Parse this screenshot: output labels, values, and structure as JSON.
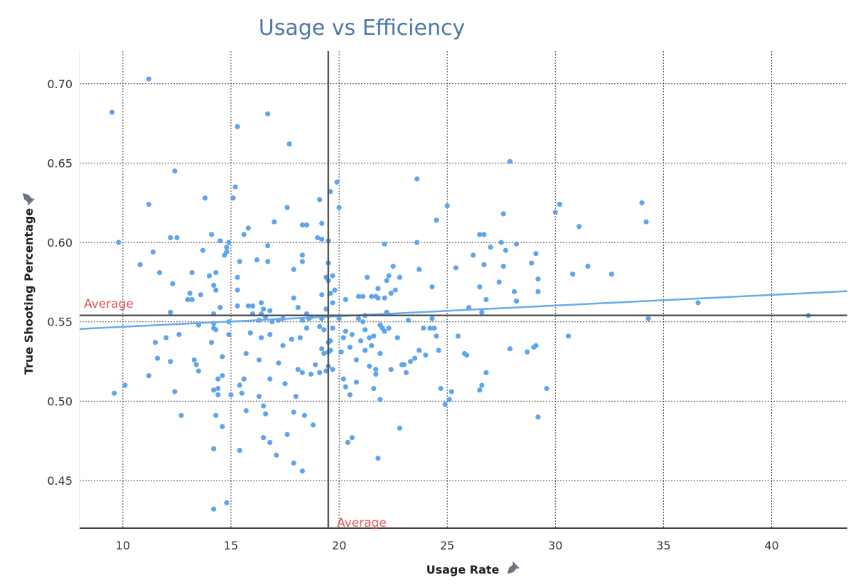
{
  "colors": {
    "title": "#4e79a7",
    "point": "#5ea5ec",
    "trend": "#66aaf0",
    "average_line": "#555555",
    "average_label": "#e15759",
    "grid": "#4a4a4a"
  },
  "chart_data": {
    "type": "scatter",
    "title": "Usage vs Efficiency",
    "xlabel": "Usage Rate",
    "ylabel": "True Shooting Percentage",
    "axis_pin_icon": "pin-icon",
    "xlim": [
      8,
      43.5
    ],
    "ylim": [
      0.42,
      0.7205
    ],
    "x_ticks": [
      10,
      15,
      20,
      25,
      30,
      35,
      40
    ],
    "y_ticks": [
      0.45,
      0.5,
      0.55,
      0.6,
      0.65,
      0.7
    ],
    "y_tick_labels": [
      "0.45",
      "0.50",
      "0.55",
      "0.60",
      "0.65",
      "0.70"
    ],
    "grid": true,
    "averages": {
      "x": 19.5,
      "y": 0.554,
      "x_label": "Average",
      "y_label": "Average"
    },
    "trend_line": {
      "x": [
        8,
        43.5
      ],
      "y": [
        0.5455,
        0.5693
      ]
    },
    "points": [
      [
        9.5,
        0.682
      ],
      [
        9.6,
        0.505
      ],
      [
        9.8,
        0.6
      ],
      [
        10.1,
        0.51
      ],
      [
        10.8,
        0.586
      ],
      [
        11.2,
        0.703
      ],
      [
        11.2,
        0.624
      ],
      [
        11.2,
        0.516
      ],
      [
        11.4,
        0.594
      ],
      [
        11.5,
        0.537
      ],
      [
        11.6,
        0.527
      ],
      [
        11.7,
        0.581
      ],
      [
        12.0,
        0.54
      ],
      [
        12.2,
        0.603
      ],
      [
        12.2,
        0.556
      ],
      [
        12.2,
        0.525
      ],
      [
        12.3,
        0.574
      ],
      [
        12.4,
        0.645
      ],
      [
        12.4,
        0.506
      ],
      [
        12.5,
        0.603
      ],
      [
        12.6,
        0.542
      ],
      [
        12.7,
        0.491
      ],
      [
        13.0,
        0.564
      ],
      [
        13.1,
        0.568
      ],
      [
        13.2,
        0.564
      ],
      [
        13.2,
        0.581
      ],
      [
        13.3,
        0.526
      ],
      [
        13.4,
        0.523
      ],
      [
        13.5,
        0.548
      ],
      [
        13.5,
        0.519
      ],
      [
        13.6,
        0.567
      ],
      [
        13.7,
        0.595
      ],
      [
        13.8,
        0.628
      ],
      [
        14.0,
        0.579
      ],
      [
        14.1,
        0.605
      ],
      [
        14.1,
        0.537
      ],
      [
        14.2,
        0.573
      ],
      [
        14.2,
        0.555
      ],
      [
        14.3,
        0.57
      ],
      [
        14.3,
        0.581
      ],
      [
        14.2,
        0.549
      ],
      [
        14.2,
        0.546
      ],
      [
        14.3,
        0.545
      ],
      [
        14.2,
        0.507
      ],
      [
        14.4,
        0.514
      ],
      [
        14.2,
        0.47
      ],
      [
        14.2,
        0.432
      ],
      [
        14.3,
        0.491
      ],
      [
        14.4,
        0.508
      ],
      [
        14.4,
        0.504
      ],
      [
        14.5,
        0.601
      ],
      [
        14.5,
        0.559
      ],
      [
        14.6,
        0.528
      ],
      [
        14.6,
        0.516
      ],
      [
        14.6,
        0.484
      ],
      [
        14.7,
        0.592
      ],
      [
        14.8,
        0.594
      ],
      [
        14.8,
        0.436
      ],
      [
        14.8,
        0.597
      ],
      [
        14.9,
        0.6
      ],
      [
        14.9,
        0.55
      ],
      [
        14.9,
        0.542
      ],
      [
        15.0,
        0.504
      ],
      [
        15.1,
        0.628
      ],
      [
        15.2,
        0.635
      ],
      [
        15.3,
        0.673
      ],
      [
        15.3,
        0.57
      ],
      [
        15.3,
        0.56
      ],
      [
        15.3,
        0.578
      ],
      [
        15.4,
        0.588
      ],
      [
        15.4,
        0.51
      ],
      [
        15.4,
        0.469
      ],
      [
        15.5,
        0.505
      ],
      [
        15.6,
        0.605
      ],
      [
        15.6,
        0.514
      ],
      [
        15.7,
        0.53
      ],
      [
        15.7,
        0.494
      ],
      [
        15.8,
        0.56
      ],
      [
        15.8,
        0.609
      ],
      [
        15.9,
        0.543
      ],
      [
        16.0,
        0.56
      ],
      [
        16.0,
        0.555
      ],
      [
        16.2,
        0.589
      ],
      [
        16.3,
        0.551
      ],
      [
        16.3,
        0.526
      ],
      [
        16.3,
        0.503
      ],
      [
        16.4,
        0.562
      ],
      [
        16.4,
        0.555
      ],
      [
        16.4,
        0.54
      ],
      [
        16.5,
        0.558
      ],
      [
        16.5,
        0.477
      ],
      [
        16.5,
        0.497
      ],
      [
        16.6,
        0.553
      ],
      [
        16.6,
        0.492
      ],
      [
        16.7,
        0.681
      ],
      [
        16.7,
        0.598
      ],
      [
        16.7,
        0.588
      ],
      [
        16.8,
        0.557
      ],
      [
        16.8,
        0.542
      ],
      [
        16.8,
        0.514
      ],
      [
        16.8,
        0.474
      ],
      [
        16.9,
        0.55
      ],
      [
        17.0,
        0.613
      ],
      [
        17.1,
        0.466
      ],
      [
        17.2,
        0.551
      ],
      [
        17.2,
        0.524
      ],
      [
        17.4,
        0.552
      ],
      [
        17.4,
        0.535
      ],
      [
        17.5,
        0.511
      ],
      [
        17.6,
        0.622
      ],
      [
        17.6,
        0.479
      ],
      [
        17.7,
        0.662
      ],
      [
        17.8,
        0.539
      ],
      [
        17.9,
        0.461
      ],
      [
        17.9,
        0.583
      ],
      [
        17.9,
        0.565
      ],
      [
        17.9,
        0.493
      ],
      [
        18.0,
        0.503
      ],
      [
        18.1,
        0.559
      ],
      [
        18.1,
        0.52
      ],
      [
        18.2,
        0.54
      ],
      [
        18.3,
        0.611
      ],
      [
        18.3,
        0.592
      ],
      [
        18.3,
        0.588
      ],
      [
        18.3,
        0.551
      ],
      [
        18.3,
        0.518
      ],
      [
        18.3,
        0.456
      ],
      [
        18.4,
        0.491
      ],
      [
        18.5,
        0.611
      ],
      [
        18.5,
        0.555
      ],
      [
        18.5,
        0.546
      ],
      [
        18.6,
        0.552
      ],
      [
        18.7,
        0.517
      ],
      [
        18.7,
        0.553
      ],
      [
        18.8,
        0.485
      ],
      [
        18.9,
        0.523
      ],
      [
        19.0,
        0.603
      ],
      [
        19.1,
        0.627
      ],
      [
        19.1,
        0.547
      ],
      [
        19.1,
        0.518
      ],
      [
        19.2,
        0.612
      ],
      [
        19.2,
        0.602
      ],
      [
        19.2,
        0.567
      ],
      [
        19.2,
        0.533
      ],
      [
        19.2,
        0.552
      ],
      [
        19.3,
        0.53
      ],
      [
        19.3,
        0.545
      ],
      [
        19.4,
        0.519
      ],
      [
        19.4,
        0.558
      ],
      [
        19.4,
        0.578
      ],
      [
        19.5,
        0.601
      ],
      [
        19.5,
        0.587
      ],
      [
        19.5,
        0.576
      ],
      [
        19.5,
        0.537
      ],
      [
        19.5,
        0.522
      ],
      [
        19.5,
        0.531
      ],
      [
        19.6,
        0.632
      ],
      [
        19.6,
        0.568
      ],
      [
        19.6,
        0.532
      ],
      [
        19.6,
        0.538
      ],
      [
        19.7,
        0.579
      ],
      [
        19.7,
        0.562
      ],
      [
        19.7,
        0.546
      ],
      [
        19.7,
        0.52
      ],
      [
        19.8,
        0.57
      ],
      [
        19.9,
        0.638
      ],
      [
        20.0,
        0.622
      ],
      [
        20.0,
        0.552
      ],
      [
        20.1,
        0.531
      ],
      [
        20.2,
        0.54
      ],
      [
        20.2,
        0.514
      ],
      [
        20.3,
        0.564
      ],
      [
        20.3,
        0.544
      ],
      [
        20.3,
        0.509
      ],
      [
        20.4,
        0.474
      ],
      [
        20.5,
        0.534
      ],
      [
        20.5,
        0.504
      ],
      [
        20.6,
        0.542
      ],
      [
        20.6,
        0.477
      ],
      [
        20.8,
        0.526
      ],
      [
        20.8,
        0.512
      ],
      [
        20.9,
        0.552
      ],
      [
        20.9,
        0.566
      ],
      [
        21.0,
        0.538
      ],
      [
        21.1,
        0.566
      ],
      [
        21.1,
        0.55
      ],
      [
        21.2,
        0.554
      ],
      [
        21.2,
        0.545
      ],
      [
        21.2,
        0.532
      ],
      [
        21.3,
        0.578
      ],
      [
        21.4,
        0.54
      ],
      [
        21.4,
        0.522
      ],
      [
        21.5,
        0.566
      ],
      [
        21.5,
        0.535
      ],
      [
        21.6,
        0.541
      ],
      [
        21.6,
        0.508
      ],
      [
        21.7,
        0.566
      ],
      [
        21.7,
        0.52
      ],
      [
        21.7,
        0.517
      ],
      [
        21.8,
        0.571
      ],
      [
        21.8,
        0.565
      ],
      [
        21.8,
        0.464
      ],
      [
        21.9,
        0.548
      ],
      [
        21.9,
        0.501
      ],
      [
        21.9,
        0.53
      ],
      [
        22.0,
        0.546
      ],
      [
        22.1,
        0.599
      ],
      [
        22.1,
        0.565
      ],
      [
        22.1,
        0.544
      ],
      [
        22.2,
        0.576
      ],
      [
        22.2,
        0.556
      ],
      [
        22.3,
        0.579
      ],
      [
        22.3,
        0.546
      ],
      [
        22.4,
        0.568
      ],
      [
        22.4,
        0.52
      ],
      [
        22.5,
        0.585
      ],
      [
        22.6,
        0.57
      ],
      [
        22.7,
        0.54
      ],
      [
        22.8,
        0.578
      ],
      [
        22.8,
        0.483
      ],
      [
        22.9,
        0.523
      ],
      [
        23.0,
        0.523
      ],
      [
        23.1,
        0.518
      ],
      [
        23.2,
        0.551
      ],
      [
        23.3,
        0.525
      ],
      [
        23.5,
        0.527
      ],
      [
        23.6,
        0.64
      ],
      [
        23.6,
        0.6
      ],
      [
        23.7,
        0.583
      ],
      [
        23.7,
        0.532
      ],
      [
        23.9,
        0.546
      ],
      [
        24.0,
        0.529
      ],
      [
        24.2,
        0.546
      ],
      [
        24.3,
        0.552
      ],
      [
        24.3,
        0.572
      ],
      [
        24.4,
        0.546
      ],
      [
        24.5,
        0.614
      ],
      [
        24.5,
        0.541
      ],
      [
        24.6,
        0.532
      ],
      [
        24.7,
        0.508
      ],
      [
        24.9,
        0.498
      ],
      [
        25.0,
        0.623
      ],
      [
        25.1,
        0.501
      ],
      [
        25.2,
        0.506
      ],
      [
        25.4,
        0.584
      ],
      [
        25.5,
        0.541
      ],
      [
        25.8,
        0.53
      ],
      [
        25.9,
        0.529
      ],
      [
        26.0,
        0.559
      ],
      [
        26.2,
        0.592
      ],
      [
        26.5,
        0.605
      ],
      [
        26.5,
        0.572
      ],
      [
        26.5,
        0.507
      ],
      [
        26.6,
        0.556
      ],
      [
        26.6,
        0.51
      ],
      [
        26.7,
        0.605
      ],
      [
        26.7,
        0.586
      ],
      [
        26.8,
        0.564
      ],
      [
        26.8,
        0.518
      ],
      [
        27.0,
        0.597
      ],
      [
        27.4,
        0.575
      ],
      [
        27.5,
        0.6
      ],
      [
        27.6,
        0.585
      ],
      [
        27.6,
        0.618
      ],
      [
        27.7,
        0.595
      ],
      [
        27.9,
        0.533
      ],
      [
        27.9,
        0.651
      ],
      [
        28.1,
        0.569
      ],
      [
        28.2,
        0.563
      ],
      [
        28.2,
        0.599
      ],
      [
        28.7,
        0.531
      ],
      [
        28.9,
        0.587
      ],
      [
        29.0,
        0.534
      ],
      [
        29.1,
        0.593
      ],
      [
        29.1,
        0.535
      ],
      [
        29.2,
        0.577
      ],
      [
        29.2,
        0.569
      ],
      [
        29.2,
        0.49
      ],
      [
        29.6,
        0.508
      ],
      [
        30.0,
        0.619
      ],
      [
        30.2,
        0.624
      ],
      [
        30.6,
        0.541
      ],
      [
        30.8,
        0.58
      ],
      [
        31.1,
        0.61
      ],
      [
        31.5,
        0.585
      ],
      [
        32.6,
        0.58
      ],
      [
        34.0,
        0.625
      ],
      [
        34.2,
        0.613
      ],
      [
        34.3,
        0.552
      ],
      [
        36.6,
        0.562
      ],
      [
        41.7,
        0.554
      ]
    ]
  }
}
